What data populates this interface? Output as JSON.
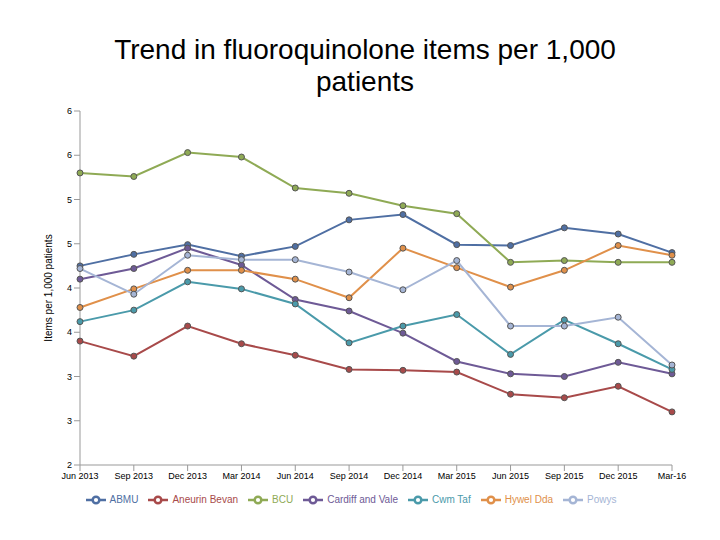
{
  "chart_data": {
    "type": "line",
    "title": "Trend in fluoroquinolone items per 1,000 patients",
    "y_label": "Items per 1,000 patients",
    "categories": [
      "Jun 2013",
      "Sep 2013",
      "Dec 2013",
      "Mar 2014",
      "Jun 2014",
      "Sep 2014",
      "Dec 2014",
      "Mar 2015",
      "Jun 2015",
      "Sep 2015",
      "Dec 2015",
      "Mar-16"
    ],
    "ylim": [
      2,
      6
    ],
    "yticks": [
      2,
      {
        "value": 2.5,
        "label": "3"
      },
      3,
      {
        "value": 3.5,
        "label": "4"
      },
      4,
      {
        "value": 4.5,
        "label": "5"
      },
      5,
      {
        "value": 5.5,
        "label": "6"
      },
      6
    ],
    "grid": false,
    "legend": "bottom",
    "marker": "circle",
    "series": [
      {
        "name": "ABMU",
        "color": "#4f6fa3",
        "values": [
          4.25,
          4.38,
          4.49,
          4.36,
          4.47,
          4.77,
          4.83,
          4.49,
          4.48,
          4.68,
          4.61,
          4.4
        ]
      },
      {
        "name": "Aneurin Bevan",
        "color": "#a84a4a",
        "values": [
          3.4,
          3.23,
          3.57,
          3.37,
          3.24,
          3.08,
          3.07,
          3.05,
          2.8,
          2.76,
          2.89,
          2.6
        ]
      },
      {
        "name": "BCU",
        "color": "#8faa55",
        "values": [
          5.3,
          5.26,
          5.53,
          5.48,
          5.13,
          5.07,
          4.93,
          4.84,
          4.29,
          4.31,
          4.29,
          4.29
        ]
      },
      {
        "name": "Cardiff and Vale",
        "color": "#6e5a96",
        "values": [
          4.1,
          4.22,
          4.45,
          4.26,
          3.87,
          3.74,
          3.49,
          3.17,
          3.03,
          3.0,
          3.16,
          3.03
        ]
      },
      {
        "name": "Cwm Taf",
        "color": "#4a9aaa",
        "values": [
          3.62,
          3.75,
          4.07,
          3.99,
          3.82,
          3.38,
          3.57,
          3.7,
          3.25,
          3.64,
          3.37,
          3.08
        ]
      },
      {
        "name": "Hywel Dda",
        "color": "#e0904a",
        "values": [
          3.78,
          3.99,
          4.2,
          4.2,
          4.1,
          3.89,
          4.45,
          4.23,
          4.01,
          4.2,
          4.48,
          4.37
        ]
      },
      {
        "name": "Powys",
        "color": "#a5b5d5",
        "values": [
          4.22,
          3.93,
          4.37,
          4.32,
          4.32,
          4.18,
          3.98,
          4.31,
          3.57,
          3.57,
          3.67,
          3.13
        ]
      }
    ]
  }
}
